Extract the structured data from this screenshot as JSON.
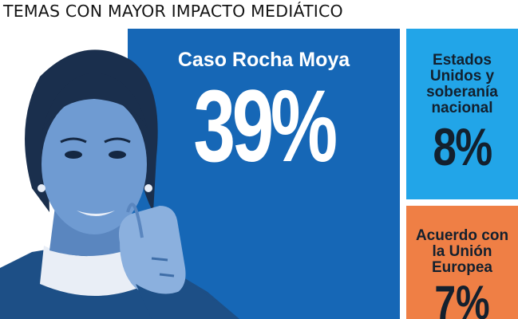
{
  "header": {
    "title": "TEMAS CON MAYOR IMPACTO MEDIÁTICO"
  },
  "chart_data": {
    "type": "treemap",
    "title": "TEMAS CON MAYOR IMPACTO MEDIÁTICO",
    "unit": "%",
    "items": [
      {
        "label": "Caso Rocha Moya",
        "value": 39,
        "display": "39%",
        "color": "#1667b6"
      },
      {
        "label": "Estados Unidos y soberanía nacional",
        "value": 8,
        "display": "8%",
        "color": "#22a5e8"
      },
      {
        "label": "Acuerdo con la Unión Europea",
        "value": 7,
        "display": "7%",
        "color": "#ef7f45"
      }
    ]
  }
}
